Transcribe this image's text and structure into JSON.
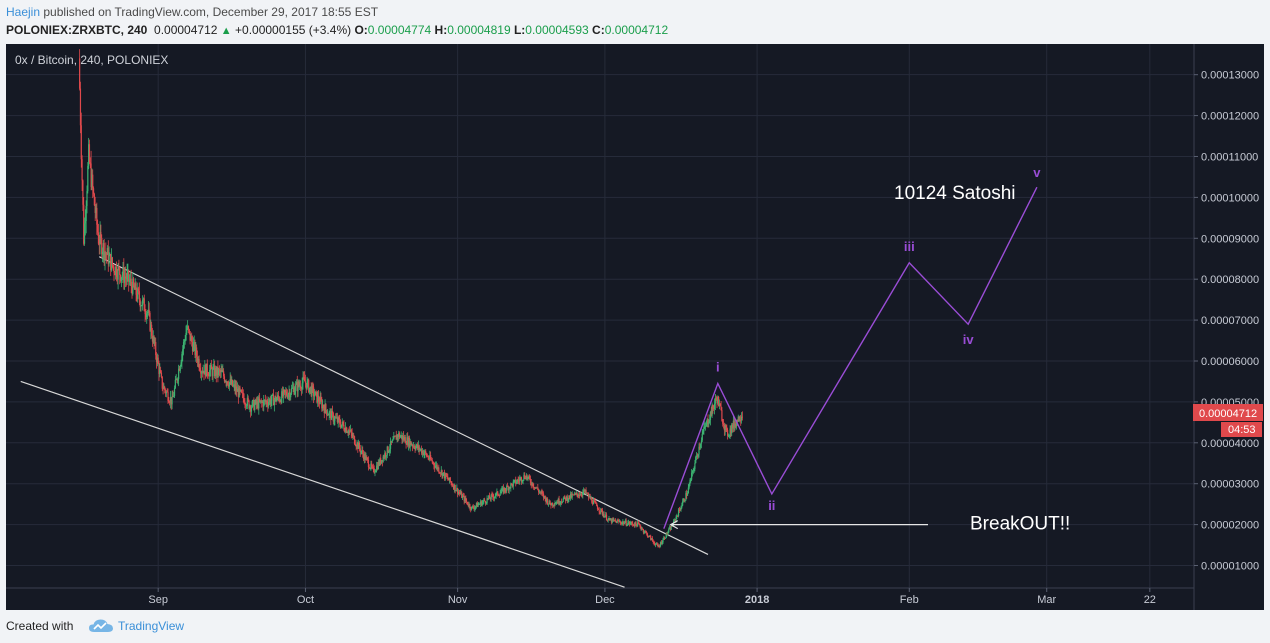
{
  "header": {
    "author": "Haejin",
    "published": "published on TradingView.com, December 29, 2017 18:55 EST",
    "symbol": "POLONIEX:ZRXBTC, 240",
    "last": "0.00004712",
    "change": "+0.00000155 (+3.4%)",
    "o_label": "O:",
    "o_value": "0.00004774",
    "h_label": "H:",
    "h_value": "0.00004819",
    "l_label": "L:",
    "l_value": "0.00004593",
    "c_label": "C:",
    "c_value": "0.00004712"
  },
  "chart": {
    "legend_title": "0x / Bitcoin, 240, POLONIEX",
    "price_tag": "0.00004712",
    "countdown": "04:53",
    "colors": {
      "background": "#151924",
      "grid": "#262b3a",
      "up": "#3cb371",
      "down": "#e0494c",
      "wave": "#9a4dd6",
      "channel": "#d8d8d8",
      "tag": "#e0494c"
    }
  },
  "chart_data": {
    "type": "candlestick",
    "symbol": "ZRXBTC",
    "exchange": "POLONIEX",
    "interval": "240",
    "x_ticks": [
      "Sep",
      "Oct",
      "Nov",
      "Dec",
      "2018",
      "Feb",
      "Mar",
      "22"
    ],
    "y_ticks": [
      "0.00001000",
      "0.00002000",
      "0.00003000",
      "0.00004000",
      "0.00005000",
      "0.00006000",
      "0.00007000",
      "0.00008000",
      "0.00009000",
      "0.00010000",
      "0.00011000",
      "0.00012000",
      "0.00013000"
    ],
    "ylim": [
      4.5e-06,
      0.0001375
    ],
    "xlim": [
      "2017-08-01",
      "2018-03-31"
    ],
    "price_path": [
      {
        "date": "2017-08-16",
        "price": 0.000134
      },
      {
        "date": "2017-08-17",
        "price": 9e-05
      },
      {
        "date": "2017-08-18",
        "price": 0.00011
      },
      {
        "date": "2017-08-20",
        "price": 9e-05
      },
      {
        "date": "2017-08-23",
        "price": 8.3e-05
      },
      {
        "date": "2017-08-26",
        "price": 8e-05
      },
      {
        "date": "2017-08-30",
        "price": 7.2e-05
      },
      {
        "date": "2017-09-02",
        "price": 5.4e-05
      },
      {
        "date": "2017-09-04",
        "price": 5e-05
      },
      {
        "date": "2017-09-07",
        "price": 6.8e-05
      },
      {
        "date": "2017-09-10",
        "price": 5.8e-05
      },
      {
        "date": "2017-09-14",
        "price": 5.7e-05
      },
      {
        "date": "2017-09-20",
        "price": 4.9e-05
      },
      {
        "date": "2017-09-26",
        "price": 5.1e-05
      },
      {
        "date": "2017-10-01",
        "price": 5.5e-05
      },
      {
        "date": "2017-10-06",
        "price": 4.7e-05
      },
      {
        "date": "2017-10-10",
        "price": 4.3e-05
      },
      {
        "date": "2017-10-15",
        "price": 3.3e-05
      },
      {
        "date": "2017-10-20",
        "price": 4.2e-05
      },
      {
        "date": "2017-10-25",
        "price": 3.8e-05
      },
      {
        "date": "2017-10-31",
        "price": 3e-05
      },
      {
        "date": "2017-11-04",
        "price": 2.4e-05
      },
      {
        "date": "2017-11-10",
        "price": 2.8e-05
      },
      {
        "date": "2017-11-15",
        "price": 3.2e-05
      },
      {
        "date": "2017-11-20",
        "price": 2.5e-05
      },
      {
        "date": "2017-11-27",
        "price": 2.8e-05
      },
      {
        "date": "2017-12-02",
        "price": 2.1e-05
      },
      {
        "date": "2017-12-08",
        "price": 2e-05
      },
      {
        "date": "2017-12-12",
        "price": 1.45e-05
      },
      {
        "date": "2017-12-15",
        "price": 2e-05
      },
      {
        "date": "2017-12-18",
        "price": 2.8e-05
      },
      {
        "date": "2017-12-21",
        "price": 4.2e-05
      },
      {
        "date": "2017-12-24",
        "price": 5.1e-05
      },
      {
        "date": "2017-12-26",
        "price": 4.2e-05
      },
      {
        "date": "2017-12-29",
        "price": 4.71e-05
      }
    ],
    "channel": {
      "upper": [
        {
          "date": "2017-08-20",
          "price": 8.55e-05
        },
        {
          "date": "2017-12-22",
          "price": 1.27e-05
        }
      ],
      "lower": [
        {
          "date": "2017-08-04",
          "price": 5.5e-05
        },
        {
          "date": "2017-12-05",
          "price": 4.7e-06
        }
      ]
    },
    "elliott_wave": [
      {
        "date": "2017-12-13",
        "price": 1.9e-05,
        "label": ""
      },
      {
        "date": "2017-12-24",
        "price": 5.45e-05,
        "label": "i"
      },
      {
        "date": "2018-01-04",
        "price": 2.75e-05,
        "label": "ii"
      },
      {
        "date": "2018-02-01",
        "price": 8.4e-05,
        "label": "iii"
      },
      {
        "date": "2018-02-13",
        "price": 6.9e-05,
        "label": "iv"
      },
      {
        "date": "2018-02-27",
        "price": 0.0001025,
        "label": "v"
      }
    ],
    "annotations": [
      {
        "text": "10124 Satoshi"
      },
      {
        "text": "BreakOUT!!",
        "arrow_to": {
          "date": "2017-12-14",
          "price": 2e-05
        }
      }
    ]
  },
  "footer": {
    "created_with": "Created with",
    "brand": "TradingView"
  }
}
